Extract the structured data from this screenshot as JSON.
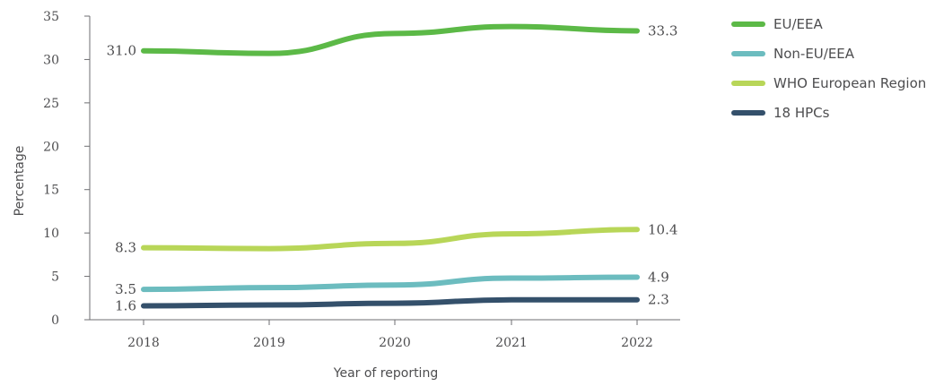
{
  "chart_data": {
    "type": "line",
    "title": "",
    "xlabel": "Year of reporting",
    "ylabel": "Percentage",
    "categories": [
      "2018",
      "2019",
      "2020",
      "2021",
      "2022"
    ],
    "ylim": [
      0,
      35
    ],
    "yticks": [
      0,
      5,
      10,
      15,
      20,
      25,
      30,
      35
    ],
    "grid": false,
    "legend_position": "top-right",
    "series": [
      {
        "name": "EU/EEA",
        "color": "#5cb947",
        "values": [
          31.0,
          30.7,
          33.0,
          33.8,
          33.3
        ],
        "labels": [
          "31.0",
          "",
          "",
          "",
          "33.3"
        ]
      },
      {
        "name": "Non-EU/EEA",
        "color": "#6cbcbf",
        "values": [
          3.5,
          3.7,
          4.0,
          4.8,
          4.9
        ],
        "labels": [
          "3.5",
          "",
          "",
          "",
          "4.9"
        ]
      },
      {
        "name": "WHO European Region",
        "color": "#b8d658",
        "values": [
          8.3,
          8.2,
          8.8,
          9.9,
          10.4
        ],
        "labels": [
          "8.3",
          "",
          "",
          "",
          "10.4"
        ]
      },
      {
        "name": "18 HPCs",
        "color": "#34506b",
        "values": [
          1.6,
          1.7,
          1.9,
          2.3,
          2.3
        ],
        "labels": [
          "1.6",
          "",
          "",
          "",
          "2.3"
        ]
      }
    ]
  }
}
